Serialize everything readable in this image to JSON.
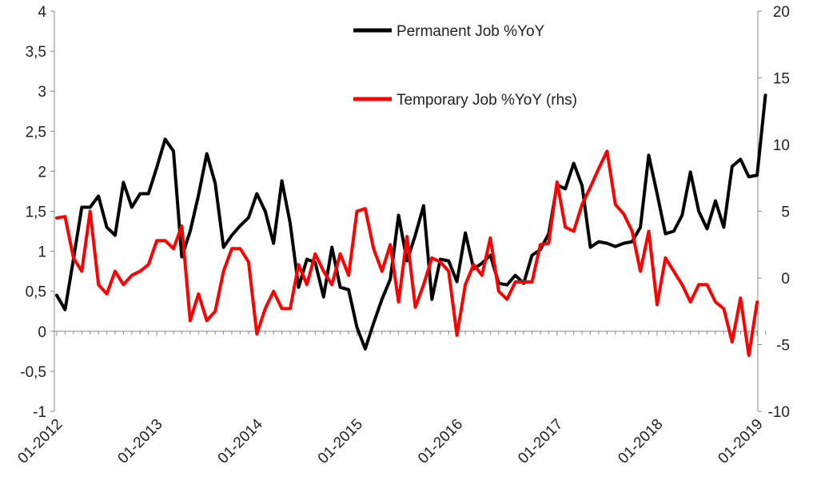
{
  "chart_data": {
    "type": "line",
    "title": "",
    "xlabel": "",
    "ylabel": "",
    "y_left": {
      "min": -1,
      "max": 4,
      "step": 0.5
    },
    "y_right": {
      "min": -10,
      "max": 20,
      "step": 5
    },
    "x_tick_labels": [
      "01-2012",
      "01-2013",
      "01-2014",
      "01-2015",
      "01-2016",
      "01-2017",
      "01-2018",
      "01-2019"
    ],
    "y_left_tick_labels": [
      "-1",
      "-0,5",
      "0",
      "0,5",
      "1",
      "1,5",
      "2",
      "2,5",
      "3",
      "3,5",
      "4"
    ],
    "y_right_tick_labels": [
      "-10",
      "-5",
      "0",
      "5",
      "10",
      "15",
      "20"
    ],
    "legend_position": "top-center",
    "grid": false,
    "series": [
      {
        "name": "Permanent Job %YoY",
        "axis": "left",
        "color": "#000000",
        "start": "01-2012",
        "frequency": "monthly",
        "values": [
          0.45,
          0.27,
          0.9,
          1.55,
          1.55,
          1.69,
          1.3,
          1.2,
          1.86,
          1.55,
          1.72,
          1.72,
          2.05,
          2.4,
          2.25,
          0.93,
          1.25,
          1.7,
          2.22,
          1.85,
          1.05,
          1.2,
          1.32,
          1.42,
          1.72,
          1.5,
          1.1,
          1.88,
          1.35,
          0.55,
          0.9,
          0.86,
          0.43,
          1.05,
          0.55,
          0.52,
          0.05,
          -0.22,
          0.1,
          0.4,
          0.65,
          1.45,
          0.88,
          1.2,
          1.57,
          0.4,
          0.9,
          0.88,
          0.62,
          1.23,
          0.78,
          0.85,
          0.95,
          0.6,
          0.58,
          0.7,
          0.6,
          0.95,
          1.02,
          1.22,
          1.83,
          1.78,
          2.1,
          1.82,
          1.05,
          1.12,
          1.1,
          1.06,
          1.1,
          1.12,
          1.3,
          2.2,
          1.72,
          1.22,
          1.25,
          1.45,
          1.99,
          1.5,
          1.28,
          1.63,
          1.3,
          2.06,
          2.15,
          1.93,
          1.95,
          2.95
        ]
      },
      {
        "name": "Temporary Job %YoY (rhs)",
        "axis": "right",
        "color": "#ff0000",
        "start": "01-2012",
        "frequency": "monthly",
        "values": [
          4.5,
          4.6,
          1.5,
          0.5,
          5.0,
          -0.5,
          -1.2,
          0.5,
          -0.5,
          0.2,
          0.5,
          1.0,
          2.8,
          2.8,
          2.2,
          3.9,
          -3.2,
          -1.2,
          -3.2,
          -2.5,
          0.5,
          2.2,
          2.2,
          1.2,
          -4.2,
          -2.3,
          -1.0,
          -2.3,
          -2.3,
          1.0,
          -0.5,
          1.8,
          0.5,
          -0.5,
          1.8,
          0.2,
          5.0,
          5.2,
          2.2,
          0.5,
          2.5,
          -1.8,
          3.1,
          -2.2,
          -0.5,
          1.5,
          1.2,
          0.5,
          -4.3,
          -0.5,
          1.0,
          0.2,
          3.0,
          -1.0,
          -1.6,
          -0.3,
          -0.3,
          -0.3,
          2.5,
          2.6,
          7.2,
          3.8,
          3.5,
          5.5,
          6.8,
          8.2,
          9.5,
          5.5,
          4.8,
          3.5,
          0.5,
          3.5,
          -2.0,
          1.5,
          0.5,
          -0.5,
          -1.8,
          -0.5,
          -0.5,
          -1.8,
          -2.3,
          -4.8,
          -1.5,
          -5.8,
          -1.8
        ]
      }
    ]
  }
}
